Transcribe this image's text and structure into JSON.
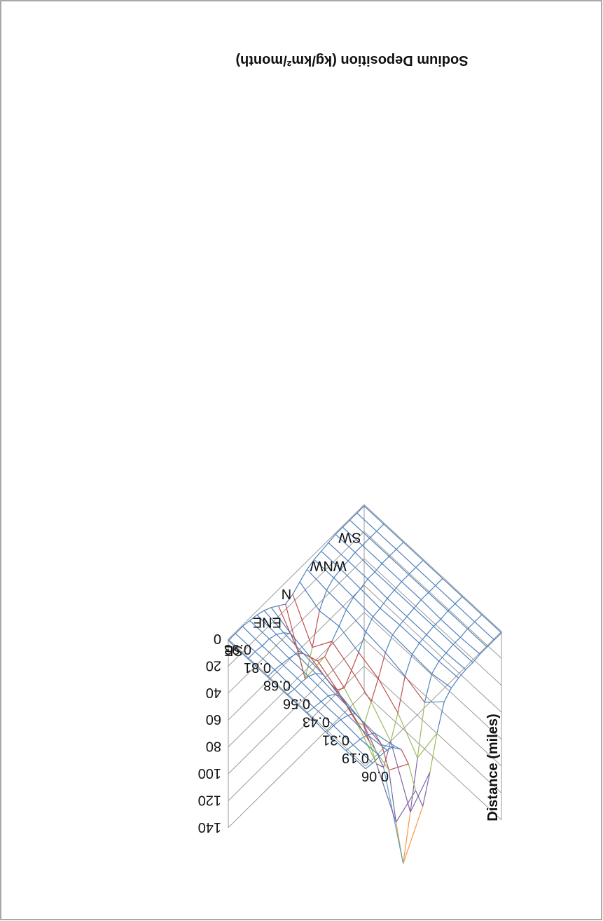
{
  "chart_data": {
    "type": "surface",
    "title": "Sodium Deposition (kg/km²/month)",
    "xlabel": "Distance (miles)",
    "ylabel": "",
    "zlim": [
      0,
      140
    ],
    "z_ticks": [
      "0",
      "20",
      "40",
      "60",
      "80",
      "100",
      "120",
      "140"
    ],
    "distance_categories": [
      "0.06",
      "0.19",
      "0.31",
      "0.43",
      "0.56",
      "0.68",
      "0.81",
      "0.93"
    ],
    "direction_labels": [
      "SE",
      "ENE",
      "N",
      "WNW",
      "SW"
    ],
    "band_colors": [
      "#4F81BD",
      "#C0504D",
      "#9BBB59",
      "#8064A2",
      "#4BACC6",
      "#F79646",
      "#8EB4E3"
    ],
    "rotation_deg": 180,
    "values": [
      [
        2,
        3,
        3,
        4,
        6,
        14,
        30,
        55,
        72,
        52,
        28,
        10,
        5,
        3,
        2,
        2,
        1,
        1,
        1,
        1
      ],
      [
        2,
        3,
        4,
        6,
        10,
        24,
        48,
        92,
        128,
        95,
        60,
        24,
        8,
        4,
        3,
        2,
        2,
        1,
        1,
        1
      ],
      [
        2,
        2,
        3,
        5,
        9,
        20,
        40,
        62,
        70,
        56,
        40,
        18,
        7,
        4,
        3,
        2,
        2,
        1,
        1,
        1
      ],
      [
        1,
        2,
        3,
        4,
        8,
        16,
        30,
        45,
        52,
        40,
        28,
        14,
        6,
        4,
        3,
        2,
        1,
        1,
        1,
        1
      ],
      [
        1,
        2,
        2,
        3,
        6,
        12,
        24,
        34,
        38,
        30,
        22,
        12,
        6,
        5,
        3,
        2,
        1,
        1,
        1,
        1
      ],
      [
        1,
        1,
        2,
        3,
        5,
        10,
        18,
        26,
        28,
        22,
        16,
        9,
        5,
        4,
        2,
        2,
        1,
        1,
        1,
        1
      ],
      [
        1,
        1,
        2,
        2,
        4,
        8,
        14,
        32,
        58,
        40,
        18,
        8,
        4,
        3,
        2,
        1,
        1,
        1,
        1,
        1
      ],
      [
        1,
        1,
        1,
        2,
        3,
        5,
        8,
        12,
        16,
        14,
        10,
        6,
        4,
        3,
        2,
        1,
        1,
        1,
        1,
        1
      ]
    ]
  }
}
